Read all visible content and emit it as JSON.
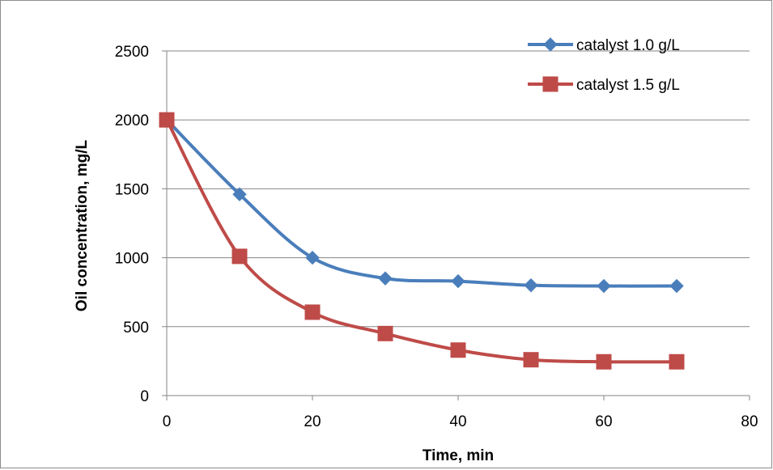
{
  "chart_data": {
    "type": "line",
    "title": "",
    "xlabel": "Time, min",
    "ylabel": "Oil concentration, mg/L",
    "xlim": [
      0,
      80
    ],
    "ylim": [
      0,
      2500
    ],
    "xticks": [
      0,
      20,
      40,
      60,
      80
    ],
    "yticks": [
      0,
      500,
      1000,
      1500,
      2000,
      2500
    ],
    "grid": "horizontal",
    "legend_position": "top-right",
    "series": [
      {
        "name": "catalyst 1.0 g/L",
        "color": "#4a7ebb",
        "marker": "diamond",
        "x": [
          0,
          10,
          20,
          30,
          40,
          50,
          60,
          70
        ],
        "y": [
          2000,
          1460,
          1000,
          850,
          830,
          800,
          795,
          795
        ]
      },
      {
        "name": "catalyst 1.5 g/L",
        "color": "#be4b48",
        "marker": "square",
        "x": [
          0,
          10,
          20,
          30,
          40,
          50,
          60,
          70
        ],
        "y": [
          2000,
          1010,
          605,
          450,
          330,
          260,
          245,
          245
        ]
      }
    ]
  }
}
